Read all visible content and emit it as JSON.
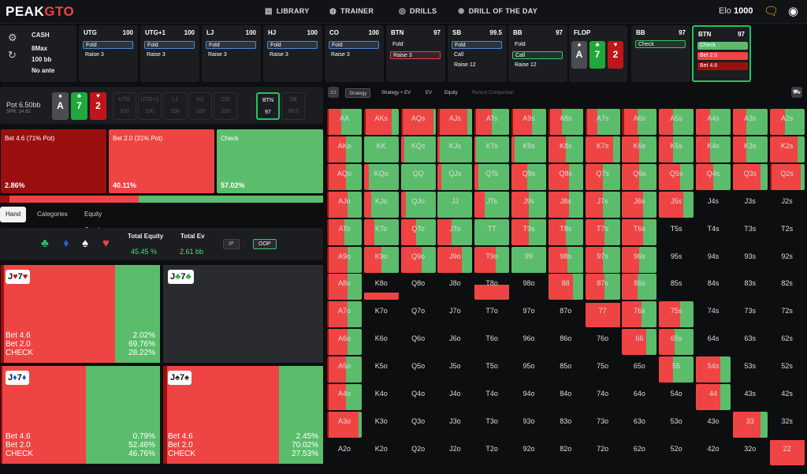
{
  "colors": {
    "check": "#5bbd6c",
    "bet_small": "#ef4444",
    "bet_big": "#9b0f0f",
    "accent": "#22c55e",
    "brand_red": "#ef4444"
  },
  "nav": {
    "logo_a": "PEAK",
    "logo_b": "GTO",
    "items": [
      {
        "icon": "library-icon",
        "glyph": "▤",
        "label": "LIBRARY"
      },
      {
        "icon": "gamepad-icon",
        "glyph": "◍",
        "label": "TRAINER"
      },
      {
        "icon": "target-icon",
        "glyph": "◎",
        "label": "DRILLS"
      },
      {
        "icon": "plus-circle-icon",
        "glyph": "⊕",
        "label": "DRILL OF THE DAY"
      }
    ],
    "elo_label": "Elo",
    "elo_value": "1000"
  },
  "game": {
    "type": "CASH",
    "format": "8Max",
    "stack": "100 bb",
    "ante": "No ante"
  },
  "path": [
    {
      "pos": "UTG",
      "stack": "100",
      "actions": [
        {
          "label": "Fold",
          "style": "sel"
        },
        {
          "label": "Raise 3",
          "style": ""
        }
      ]
    },
    {
      "pos": "UTG+1",
      "stack": "100",
      "actions": [
        {
          "label": "Fold",
          "style": "sel"
        },
        {
          "label": "Raise 3",
          "style": ""
        }
      ]
    },
    {
      "pos": "LJ",
      "stack": "100",
      "actions": [
        {
          "label": "Fold",
          "style": "sel"
        },
        {
          "label": "Raise 3",
          "style": ""
        }
      ]
    },
    {
      "pos": "HJ",
      "stack": "100",
      "actions": [
        {
          "label": "Fold",
          "style": "sel"
        },
        {
          "label": "Raise 3",
          "style": ""
        }
      ]
    },
    {
      "pos": "CO",
      "stack": "100",
      "actions": [
        {
          "label": "Fold",
          "style": "sel"
        },
        {
          "label": "Raise 3",
          "style": ""
        }
      ]
    },
    {
      "pos": "BTN",
      "stack": "97",
      "actions": [
        {
          "label": "Fold",
          "style": ""
        },
        {
          "label": "Raise 3",
          "style": "selr"
        }
      ]
    },
    {
      "pos": "SB",
      "stack": "99.5",
      "actions": [
        {
          "label": "Fold",
          "style": "sel"
        },
        {
          "label": "Call",
          "style": ""
        },
        {
          "label": "Raise 12",
          "style": ""
        }
      ]
    },
    {
      "pos": "BB",
      "stack": "97",
      "actions": [
        {
          "label": "Fold",
          "style": ""
        },
        {
          "label": "Call",
          "style": "selg"
        },
        {
          "label": "Raise 12",
          "style": ""
        }
      ]
    }
  ],
  "flop": {
    "label": "FLOP",
    "cards": [
      {
        "rank": "A",
        "suit": "♠",
        "color": "#4b4d52"
      },
      {
        "rank": "7",
        "suit": "♣",
        "color": "#1fa83c"
      },
      {
        "rank": "2",
        "suit": "♥",
        "color": "#c0151a"
      }
    ]
  },
  "bb_node": {
    "pos": "BB",
    "stack": "97",
    "actions": [
      {
        "label": "Check",
        "style": "selg"
      }
    ]
  },
  "btn_node": {
    "pos": "BTN",
    "stack": "97",
    "actions": [
      {
        "label": "Check",
        "style": "fill-g"
      },
      {
        "label": "Bet 2.0",
        "style": "fill-r"
      },
      {
        "label": "Bet 4.6",
        "style": "fill-dr"
      }
    ]
  },
  "pot": {
    "label": "Pot",
    "value": "6.50bb",
    "spr": "SPR: 14.92",
    "seats": [
      {
        "name": "UTG",
        "stack": "100"
      },
      {
        "name": "UTG+1",
        "stack": "100"
      },
      {
        "name": "LJ",
        "stack": "100"
      },
      {
        "name": "HJ",
        "stack": "100"
      },
      {
        "name": "CO",
        "stack": "100"
      },
      {
        "name": "BTN",
        "stack": "97"
      },
      {
        "name": "SB",
        "stack": "99.5"
      }
    ]
  },
  "actions": [
    {
      "label": "Bet 4.6 (71% Pot)",
      "freq": "2.86%",
      "value": 2.86,
      "color": "#9b0f0f"
    },
    {
      "label": "Bet 2.0 (31% Pot)",
      "freq": "40.11%",
      "value": 40.11,
      "color": "#ef4444"
    },
    {
      "label": "Check",
      "freq": "57.02%",
      "value": 57.02,
      "color": "#5bbd6c"
    }
  ],
  "tabs": [
    "Hand",
    "Categories",
    "Equity Graph"
  ],
  "equity": {
    "total_equity_label": "Total Equity",
    "total_equity": "45.45 %",
    "total_ev_label": "Total Ev",
    "total_ev": "2.61 bb",
    "ip": "IP",
    "oop": "OOP"
  },
  "hands": [
    {
      "rank1": "J",
      "s1": "♥",
      "c1": "#c0151a",
      "rank2": "7",
      "s2": "♥",
      "c2": "#c0151a",
      "has_strategy": true,
      "bet46": 2.02,
      "bet20": 69.76,
      "check": 28.22,
      "l1": "Bet 4.6",
      "l2": "Bet 2.0",
      "l3": "CHECK",
      "r1": "2.02%",
      "r2": "69.76%",
      "r3": "28.22%"
    },
    {
      "rank1": "J",
      "s1": "♣",
      "c1": "#1fa83c",
      "rank2": "7",
      "s2": "♣",
      "c2": "#1fa83c",
      "has_strategy": false
    },
    {
      "rank1": "J",
      "s1": "♦",
      "c1": "#1f50d6",
      "rank2": "7",
      "s2": "♦",
      "c2": "#1f50d6",
      "has_strategy": true,
      "bet46": 0.79,
      "bet20": 52.46,
      "check": 46.76,
      "l1": "Bet 4.6",
      "l2": "Bet 2.0",
      "l3": "CHECK",
      "r1": "0.79%",
      "r2": "52.46%",
      "r3": "46.76%"
    },
    {
      "rank1": "J",
      "s1": "♠",
      "c1": "#222222",
      "rank2": "7",
      "s2": "♠",
      "c2": "#222222",
      "has_strategy": true,
      "bet46": 2.45,
      "bet20": 70.02,
      "check": 27.53,
      "l1": "Bet 4.6",
      "l2": "Bet 2.0",
      "l3": "CHECK",
      "r1": "2.45%",
      "r2": "70.02%",
      "r3": "27.53%"
    }
  ],
  "right_tabs": [
    "Strategy",
    "Strategy + EV",
    "EV",
    "Equity",
    "Runout Comparison"
  ],
  "range_grid": {
    "ranks": [
      "A",
      "K",
      "Q",
      "J",
      "T",
      "9",
      "8",
      "7",
      "6",
      "5",
      "4",
      "3",
      "2"
    ],
    "freq": [
      [
        [
          0.6,
          0.35,
          0.05
        ],
        [
          0.2,
          0.75,
          0.05
        ],
        [
          0.05,
          0.9,
          0.05
        ],
        [
          0.15,
          0.8,
          0.05
        ],
        [
          0.5,
          0.45,
          0.05
        ],
        [
          0.4,
          0.55,
          0.05
        ],
        [
          0.6,
          0.35,
          0.05
        ],
        [
          0.65,
          0.3,
          0.05
        ],
        [
          0.55,
          0.4,
          0.05
        ],
        [
          0.6,
          0.4,
          0
        ],
        [
          0.6,
          0.4,
          0
        ],
        [
          0.6,
          0.4,
          0
        ],
        [
          0.55,
          0.45,
          0
        ]
      ],
      [
        [
          0.45,
          0.5,
          0.05
        ],
        [
          1,
          0,
          0
        ],
        [
          0.9,
          0.1,
          0
        ],
        [
          0.95,
          0.05,
          0
        ],
        [
          0.95,
          0.05,
          0
        ],
        [
          0.9,
          0.1,
          0
        ],
        [
          0.5,
          0.5,
          0
        ],
        [
          0.2,
          0.8,
          0
        ],
        [
          0.5,
          0.5,
          0
        ],
        [
          0.6,
          0.4,
          0
        ],
        [
          0.6,
          0.4,
          0
        ],
        [
          0.6,
          0.4,
          0
        ],
        [
          0.2,
          0.8,
          0
        ]
      ],
      [
        [
          0.45,
          0.5,
          0.05
        ],
        [
          0.85,
          0.15,
          0
        ],
        [
          1,
          0,
          0
        ],
        [
          0.9,
          0.1,
          0
        ],
        [
          0.9,
          0.1,
          0
        ],
        [
          0.55,
          0.45,
          0
        ],
        [
          0.4,
          0.6,
          0
        ],
        [
          0.5,
          0.5,
          0
        ],
        [
          0.5,
          0.5,
          0
        ],
        [
          0.4,
          0.6,
          0
        ],
        [
          0.5,
          0.5,
          0
        ],
        [
          0.2,
          0.8,
          0
        ],
        [
          0.1,
          0.9,
          0.05
        ]
      ],
      [
        [
          0.4,
          0.55,
          0.05
        ],
        [
          0.8,
          0.2,
          0
        ],
        [
          0.85,
          0.15,
          0
        ],
        [
          1,
          0,
          0
        ],
        [
          0.7,
          0.3,
          0
        ],
        [
          0.5,
          0.5,
          0
        ],
        [
          0.4,
          0.6,
          0
        ],
        [
          0.5,
          0.5,
          0
        ],
        [
          0.4,
          0.6,
          0
        ],
        [
          0.3,
          0.7,
          0
        ],
        [
          0,
          0,
          0
        ],
        [
          0,
          0,
          0
        ],
        [
          0,
          0,
          0
        ]
      ],
      [
        [
          0.5,
          0.45,
          0.05
        ],
        [
          0.7,
          0.3,
          0
        ],
        [
          0.55,
          0.45,
          0
        ],
        [
          0.6,
          0.4,
          0
        ],
        [
          1,
          0,
          0
        ],
        [
          0.5,
          0.5,
          0
        ],
        [
          0.5,
          0.5,
          0
        ],
        [
          0.45,
          0.55,
          0
        ],
        [
          0.4,
          0.6,
          0
        ],
        [
          0,
          0,
          0
        ],
        [
          0,
          0,
          0
        ],
        [
          0,
          0,
          0
        ],
        [
          0,
          0,
          0
        ]
      ],
      [
        [
          0.4,
          0.55,
          0.05
        ],
        [
          0.5,
          0.5,
          0
        ],
        [
          0.4,
          0.6,
          0
        ],
        [
          0.3,
          0.7,
          0
        ],
        [
          0.4,
          0.6,
          0
        ],
        [
          1,
          0,
          0
        ],
        [
          0.45,
          0.55,
          0
        ],
        [
          0.5,
          0.5,
          0
        ],
        [
          0.5,
          0.5,
          0
        ],
        [
          0,
          0,
          0
        ],
        [
          0,
          0,
          0
        ],
        [
          0,
          0,
          0
        ],
        [
          0,
          0,
          0
        ]
      ],
      [
        [
          0.4,
          0.55,
          0.05
        ],
        [
          0,
          0.3,
          0
        ],
        [
          0,
          0,
          0
        ],
        [
          0,
          0,
          0
        ],
        [
          0,
          0.6,
          0
        ],
        [
          0,
          0,
          0
        ],
        [
          0.3,
          0.7,
          0
        ],
        [
          0.45,
          0.55,
          0
        ],
        [
          0.55,
          0.45,
          0
        ],
        [
          0,
          0,
          0
        ],
        [
          0,
          0,
          0
        ],
        [
          0,
          0,
          0
        ],
        [
          0,
          0,
          0
        ]
      ],
      [
        [
          0.4,
          0.55,
          0.05
        ],
        [
          0,
          0,
          0
        ],
        [
          0,
          0,
          0
        ],
        [
          0,
          0,
          0
        ],
        [
          0,
          0,
          0
        ],
        [
          0,
          0,
          0
        ],
        [
          0,
          0,
          0
        ],
        [
          0,
          0.95,
          0
        ],
        [
          0.45,
          0.55,
          0
        ],
        [
          0.4,
          0.6,
          0
        ],
        [
          0,
          0,
          0
        ],
        [
          0,
          0,
          0
        ],
        [
          0,
          0,
          0
        ]
      ],
      [
        [
          0.4,
          0.55,
          0.05
        ],
        [
          0,
          0,
          0
        ],
        [
          0,
          0,
          0
        ],
        [
          0,
          0,
          0
        ],
        [
          0,
          0,
          0
        ],
        [
          0,
          0,
          0
        ],
        [
          0,
          0,
          0
        ],
        [
          0,
          0,
          0
        ],
        [
          0.3,
          0.7,
          0
        ],
        [
          0.55,
          0.45,
          0
        ],
        [
          0,
          0,
          0
        ],
        [
          0,
          0,
          0
        ],
        [
          0,
          0,
          0
        ]
      ],
      [
        [
          0.45,
          0.5,
          0.05
        ],
        [
          0,
          0,
          0
        ],
        [
          0,
          0,
          0
        ],
        [
          0,
          0,
          0
        ],
        [
          0,
          0,
          0
        ],
        [
          0,
          0,
          0
        ],
        [
          0,
          0,
          0
        ],
        [
          0,
          0,
          0
        ],
        [
          0,
          0,
          0
        ],
        [
          0.6,
          0.4,
          0
        ],
        [
          0.3,
          0.7,
          0
        ],
        [
          0,
          0,
          0
        ],
        [
          0,
          0,
          0
        ]
      ],
      [
        [
          0.45,
          0.5,
          0.05
        ],
        [
          0,
          0,
          0
        ],
        [
          0,
          0,
          0
        ],
        [
          0,
          0,
          0
        ],
        [
          0,
          0,
          0
        ],
        [
          0,
          0,
          0
        ],
        [
          0,
          0,
          0
        ],
        [
          0,
          0,
          0
        ],
        [
          0,
          0,
          0
        ],
        [
          0,
          0,
          0
        ],
        [
          0.3,
          0.7,
          0
        ],
        [
          0,
          0,
          0
        ],
        [
          0,
          0,
          0
        ]
      ],
      [
        [
          0.1,
          0.85,
          0.05
        ],
        [
          0,
          0,
          0
        ],
        [
          0,
          0,
          0
        ],
        [
          0,
          0,
          0
        ],
        [
          0,
          0,
          0
        ],
        [
          0,
          0,
          0
        ],
        [
          0,
          0,
          0
        ],
        [
          0,
          0,
          0
        ],
        [
          0,
          0,
          0
        ],
        [
          0,
          0,
          0
        ],
        [
          0,
          0,
          0
        ],
        [
          0.2,
          0.8,
          0
        ],
        [
          0,
          0,
          0
        ]
      ],
      [
        [
          0,
          0,
          0
        ],
        [
          0,
          0,
          0
        ],
        [
          0,
          0,
          0
        ],
        [
          0,
          0,
          0
        ],
        [
          0,
          0,
          0
        ],
        [
          0,
          0,
          0
        ],
        [
          0,
          0,
          0
        ],
        [
          0,
          0,
          0
        ],
        [
          0,
          0,
          0
        ],
        [
          0,
          0,
          0
        ],
        [
          0,
          0,
          0
        ],
        [
          0,
          0,
          0
        ],
        [
          0,
          0.95,
          0
        ]
      ]
    ]
  }
}
